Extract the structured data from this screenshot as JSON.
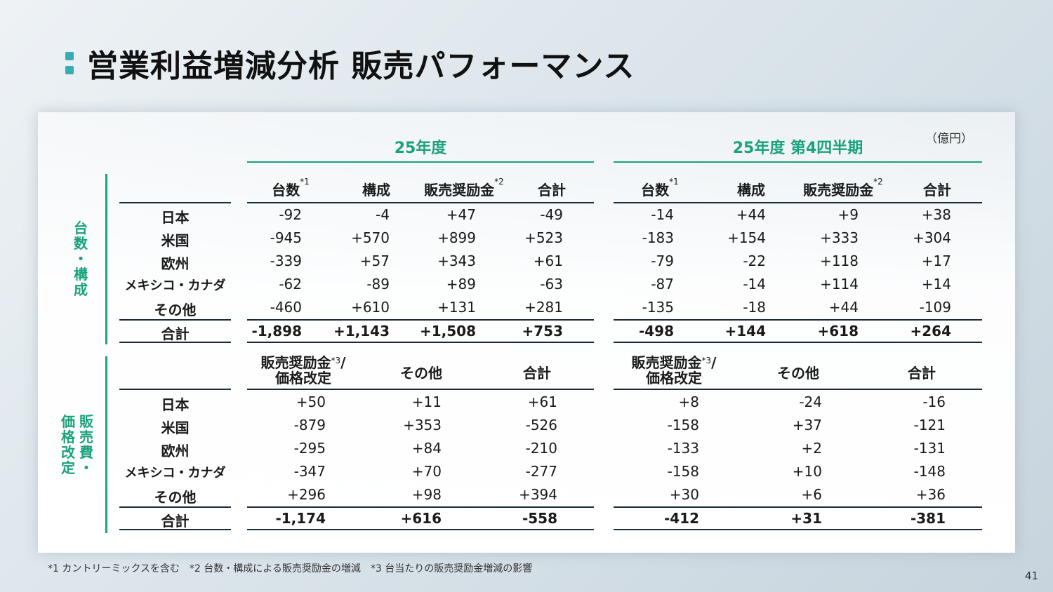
{
  "title": "営業利益増減分析 販売パフォーマンス",
  "unit": "（億円）",
  "periods": {
    "fy": "25年度",
    "q4": "25年度 第4四半期"
  },
  "section_a": {
    "label_chars": [
      "台",
      "数",
      "・",
      "構",
      "成"
    ],
    "headers": {
      "units": "台数",
      "units_note": "*1",
      "mix": "構成",
      "incentive": "販売奨励金",
      "incentive_note": "*2",
      "total": "合計"
    },
    "rows": [
      {
        "region": "日本",
        "fy": [
          "-92",
          "-4",
          "+47",
          "-49"
        ],
        "q4": [
          "-14",
          "+44",
          "+9",
          "+38"
        ]
      },
      {
        "region": "米国",
        "fy": [
          "-945",
          "+570",
          "+899",
          "+523"
        ],
        "q4": [
          "-183",
          "+154",
          "+333",
          "+304"
        ]
      },
      {
        "region": "欧州",
        "fy": [
          "-339",
          "+57",
          "+343",
          "+61"
        ],
        "q4": [
          "-79",
          "-22",
          "+118",
          "+17"
        ]
      },
      {
        "region": "メキシコ・カナダ",
        "fy": [
          "-62",
          "-89",
          "+89",
          "-63"
        ],
        "q4": [
          "-87",
          "-14",
          "+114",
          "+14"
        ]
      },
      {
        "region": "その他",
        "fy": [
          "-460",
          "+610",
          "+131",
          "+281"
        ],
        "q4": [
          "-135",
          "-18",
          "+44",
          "-109"
        ]
      }
    ],
    "total": {
      "region": "合計",
      "fy": [
        "-1,898",
        "+1,143",
        "+1,508",
        "+753"
      ],
      "q4": [
        "-498",
        "+144",
        "+618",
        "+264"
      ]
    }
  },
  "section_b": {
    "label_col1": [
      "販",
      "売",
      "費",
      "・"
    ],
    "label_col2": [
      "価",
      "格",
      "改",
      "定"
    ],
    "headers": {
      "incentive_line1": "販売奨励金",
      "incentive_note": "*3",
      "incentive_slash": "/",
      "incentive_line2": "価格改定",
      "other": "その他",
      "total": "合計"
    },
    "rows": [
      {
        "region": "日本",
        "fy": [
          "+50",
          "+11",
          "+61"
        ],
        "q4": [
          "+8",
          "-24",
          "-16"
        ]
      },
      {
        "region": "米国",
        "fy": [
          "-879",
          "+353",
          "-526"
        ],
        "q4": [
          "-158",
          "+37",
          "-121"
        ]
      },
      {
        "region": "欧州",
        "fy": [
          "-295",
          "+84",
          "-210"
        ],
        "q4": [
          "-133",
          "+2",
          "-131"
        ]
      },
      {
        "region": "メキシコ・カナダ",
        "fy": [
          "-347",
          "+70",
          "-277"
        ],
        "q4": [
          "-158",
          "+10",
          "-148"
        ]
      },
      {
        "region": "その他",
        "fy": [
          "+296",
          "+98",
          "+394"
        ],
        "q4": [
          "+30",
          "+6",
          "+36"
        ]
      }
    ],
    "total": {
      "region": "合計",
      "fy": [
        "-1,174",
        "+616",
        "-558"
      ],
      "q4": [
        "-412",
        "+31",
        "-381"
      ]
    }
  },
  "footnote": "*1 カントリーミックスを含む　*2 台数・構成による販売奨励金の増減　*3 台当たりの販売奨励金増減の影響",
  "page_number": "41",
  "colors": {
    "accent": "#1aa27e",
    "title_mark": "#3aaab5",
    "rule": "#1b2a3a"
  }
}
